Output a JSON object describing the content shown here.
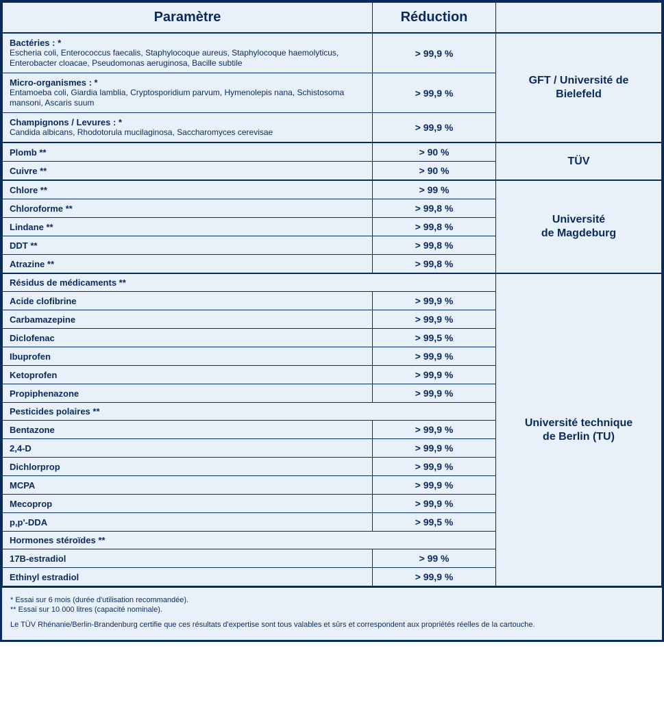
{
  "colors": {
    "border": "#0a2a5c",
    "text": "#0a2a5c",
    "background": "#e8f0f9"
  },
  "headers": {
    "param": "Paramètre",
    "reduction": "Réduction",
    "lab": ""
  },
  "groups": [
    {
      "lab": "GFT / Université de Bielefeld",
      "rows": [
        {
          "title": "Bactéries : *",
          "detail": "Escheria coli, Enterococcus faecalis, Staphylocoque aureus, Staphylocoque haemolyticus, Enterobacter cloacae, Pseudomonas aeruginosa, Bacille subtile",
          "reduction": "> 99,9 %"
        },
        {
          "title": "Micro-organismes : *",
          "detail": "Entamoeba coli, Giardia lamblia, Cryptosporidium parvum, Hymenolepis nana, Schistosoma mansoni, Ascaris suum",
          "reduction": "> 99,9 %"
        },
        {
          "title": "Champignons / Levures : *",
          "detail": "Candida albicans, Rhodotorula mucilaginosa, Saccharomyces cerevisae",
          "reduction": "> 99,9 %"
        }
      ]
    },
    {
      "lab": "TÜV",
      "rows": [
        {
          "title": "Plomb **",
          "reduction": "> 90 %"
        },
        {
          "title": "Cuivre **",
          "reduction": "> 90 %"
        }
      ]
    },
    {
      "lab": "Université de Magdeburg",
      "rows": [
        {
          "title": "Chlore **",
          "reduction": "> 99 %"
        },
        {
          "title": "Chloroforme **",
          "reduction": "> 99,8 %"
        },
        {
          "title": "Lindane **",
          "reduction": "> 99,8 %"
        },
        {
          "title": "DDT **",
          "reduction": "> 99,8 %"
        },
        {
          "title": "Atrazine **",
          "reduction": "> 99,8 %"
        }
      ]
    },
    {
      "lab": "Université technique de Berlin (TU)",
      "rows": [
        {
          "section": "Résidus de médicaments **"
        },
        {
          "title": "Acide clofibrine",
          "reduction": "> 99,9 %"
        },
        {
          "title": "Carbamazepine",
          "reduction": "> 99,9 %"
        },
        {
          "title": "Diclofenac",
          "reduction": "> 99,5 %"
        },
        {
          "title": "Ibuprofen",
          "reduction": "> 99,9 %"
        },
        {
          "title": "Ketoprofen",
          "reduction": "> 99,9 %"
        },
        {
          "title": "Propiphenazone",
          "reduction": "> 99,9 %"
        },
        {
          "section": "Pesticides polaires **"
        },
        {
          "title": "Bentazone",
          "reduction": "> 99,9 %"
        },
        {
          "title": "2,4-D",
          "reduction": "> 99,9 %"
        },
        {
          "title": "Dichlorprop",
          "reduction": "> 99,9 %"
        },
        {
          "title": "MCPA",
          "reduction": "> 99,9 %"
        },
        {
          "title": "Mecoprop",
          "reduction": "> 99,9 %"
        },
        {
          "title": "p,p'-DDA",
          "reduction": "> 99,5 %"
        },
        {
          "section": "Hormones stéroïdes **"
        },
        {
          "title": "17B-estradiol",
          "reduction": "> 99 %"
        },
        {
          "title": "Ethinyl estradiol",
          "reduction": "> 99,9 %"
        }
      ]
    }
  ],
  "footnotes": {
    "note1": "* Essai sur 6 mois (durée d'utilisation recommandée).",
    "note2": "** Essai sur 10 000 litres (capacité nominale).",
    "cert": "Le TÜV Rhénanie/Berlin-Brandenburg certifie que ces résultats d'expertise sont tous valables et sûrs et correspondent aux propriétés réelles de la cartouche."
  }
}
